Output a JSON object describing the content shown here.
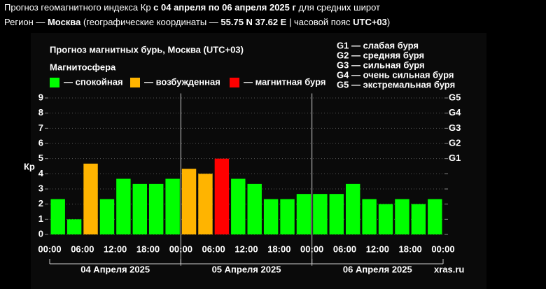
{
  "header": {
    "line1": [
      "Прогноз геомагнитного индекса Кр ",
      "с 04 апреля по 06 апреля 2025 г",
      " для средних широт"
    ],
    "line2": [
      "Регион — ",
      "Москва",
      " (географические координаты — ",
      "55.75 N 37.62 E",
      " | часовой пояс ",
      "UTC+03",
      ")"
    ]
  },
  "chart_data": {
    "type": "bar",
    "title": "Прогноз магнитных бурь, Москва (UTC+03)",
    "legend_title": "Магнитосфера",
    "legend": [
      {
        "label": "— спокойная",
        "color": "#00ff00"
      },
      {
        "label": "— возбужденная",
        "color": "#ffb400"
      },
      {
        "label": "— магнитная буря",
        "color": "#ff0000"
      }
    ],
    "storm_scale": [
      "G1 — слабая буря",
      "G2 — средняя буря",
      "G3 — сильная буря",
      "G4 — очень сильная буря",
      "G5 — экстремальная буря"
    ],
    "ylabel": "Кр",
    "values": [
      2.33,
      1,
      4.67,
      2.33,
      3.67,
      3.33,
      3.33,
      3.67,
      4.33,
      4,
      5,
      3.67,
      3.33,
      2.33,
      2.33,
      2.67,
      2.67,
      2.67,
      3.33,
      2.33,
      2,
      2.33,
      2,
      2.33
    ],
    "colors": [
      "#00ff00",
      "#00ff00",
      "#ffb400",
      "#00ff00",
      "#00ff00",
      "#00ff00",
      "#00ff00",
      "#00ff00",
      "#ffb400",
      "#ffb400",
      "#ff0000",
      "#00ff00",
      "#00ff00",
      "#00ff00",
      "#00ff00",
      "#00ff00",
      "#00ff00",
      "#00ff00",
      "#00ff00",
      "#00ff00",
      "#00ff00",
      "#00ff00",
      "#00ff00",
      "#00ff00"
    ],
    "ylim": [
      -0.4,
      9.3
    ],
    "yticks": [
      0,
      1,
      2,
      3,
      4,
      5,
      6,
      7,
      8,
      9
    ],
    "y2ticks": [
      {
        "value": 5,
        "label": "G1"
      },
      {
        "value": 6,
        "label": "G2"
      },
      {
        "value": 7,
        "label": "G3"
      },
      {
        "value": 8,
        "label": "G4"
      },
      {
        "value": 9,
        "label": "G5"
      }
    ],
    "x_labels": [
      "00:00",
      "06:00",
      "12:00",
      "18:00",
      "00:00",
      "06:00",
      "12:00",
      "18:00",
      "00:00",
      "06:00",
      "12:00",
      "18:00",
      "00:00"
    ],
    "day_labels": [
      "04 Апреля 2025",
      "05 Апреля 2025",
      "06 Апреля 2025"
    ],
    "watermark": "xras.ru",
    "grid": true
  }
}
